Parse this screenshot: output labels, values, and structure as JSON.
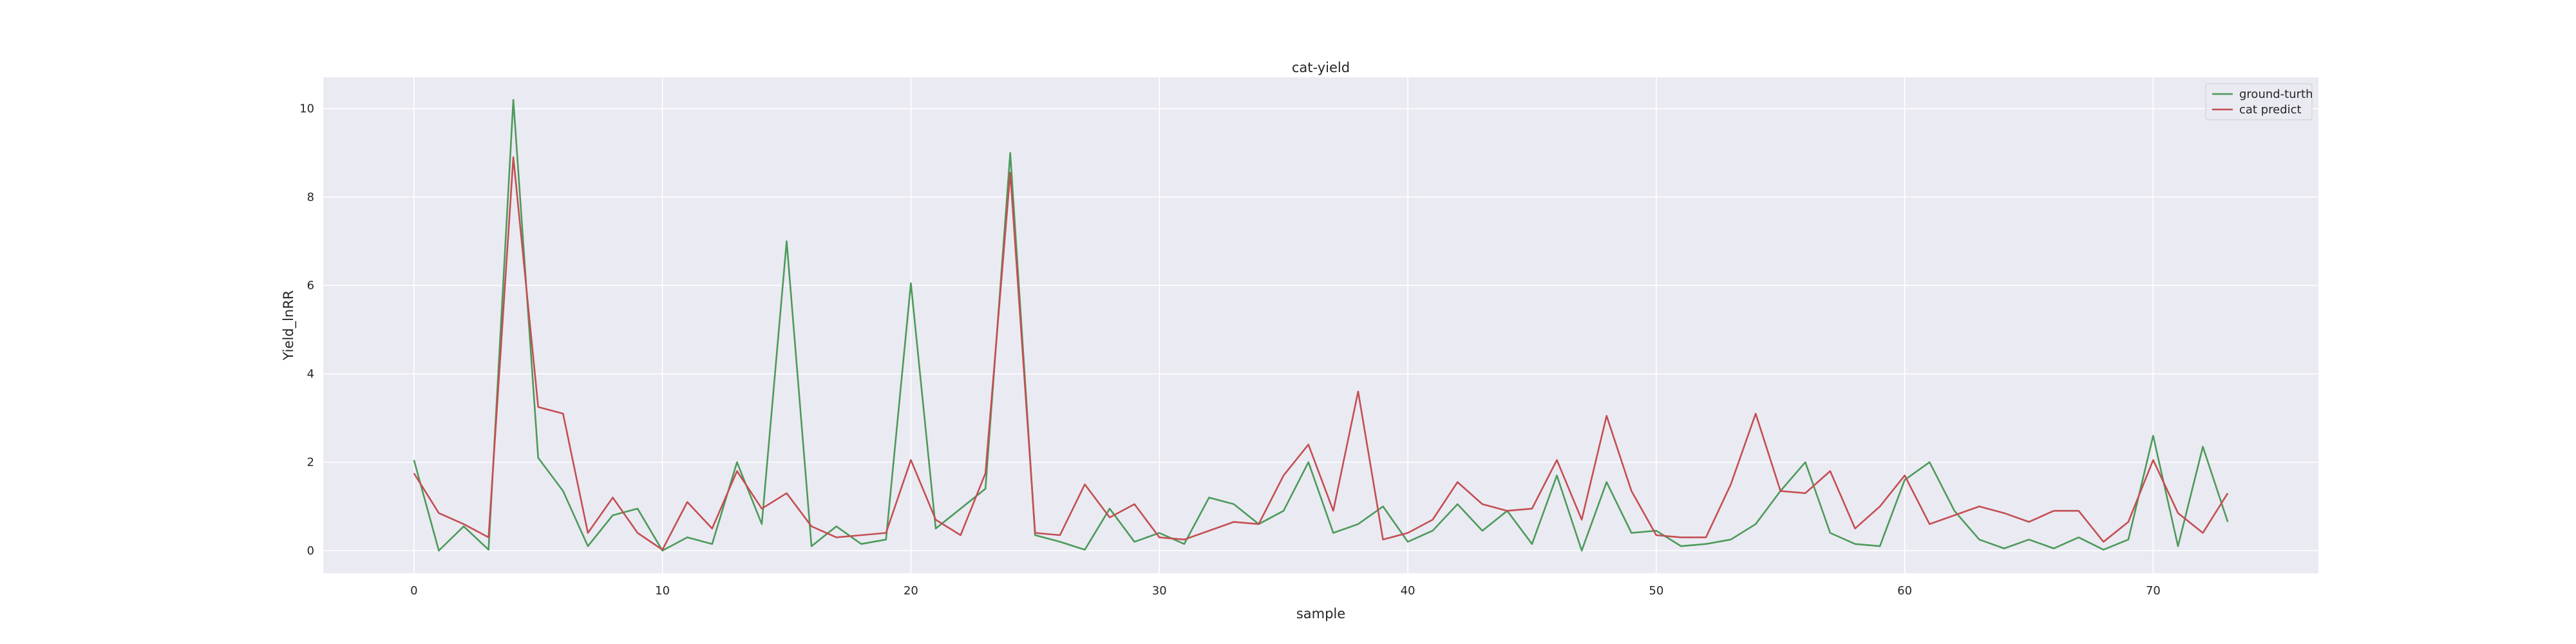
{
  "chart_data": {
    "type": "line",
    "title": "cat-yield",
    "xlabel": "sample",
    "ylabel": "Yield_lnRR",
    "xlim": [
      -3.65,
      76.65
    ],
    "ylim": [
      -0.51,
      10.71
    ],
    "xticks": [
      0,
      10,
      20,
      30,
      40,
      50,
      60,
      70
    ],
    "yticks": [
      0,
      2,
      4,
      6,
      8,
      10
    ],
    "grid": true,
    "background": "#eaeaf2",
    "legend_position": "upper right",
    "series": [
      {
        "name": "ground-turth",
        "color": "#4c9a5a",
        "values": [
          2.05,
          0.0,
          0.55,
          0.02,
          10.2,
          2.1,
          1.35,
          0.1,
          0.8,
          0.95,
          0.0,
          0.3,
          0.15,
          2.0,
          0.6,
          7.0,
          0.1,
          0.55,
          0.15,
          0.25,
          6.05,
          0.5,
          0.95,
          1.4,
          9.0,
          0.35,
          0.2,
          0.02,
          0.95,
          0.2,
          0.4,
          0.15,
          1.2,
          1.05,
          0.6,
          0.9,
          2.0,
          0.4,
          0.6,
          1.0,
          0.2,
          0.45,
          1.05,
          0.45,
          0.9,
          0.15,
          1.7,
          0.0,
          1.55,
          0.4,
          0.45,
          0.1,
          0.15,
          0.25,
          0.6,
          1.35,
          2.0,
          0.4,
          0.15,
          0.1,
          1.6,
          2.0,
          0.9,
          0.25,
          0.05,
          0.25,
          0.05,
          0.3,
          0.02,
          0.25,
          2.6,
          0.1,
          2.35,
          0.65
        ]
      },
      {
        "name": "cat predict",
        "color": "#c44e52",
        "values": [
          1.75,
          0.85,
          0.6,
          0.3,
          8.9,
          3.25,
          3.1,
          0.4,
          1.2,
          0.4,
          0.02,
          1.1,
          0.5,
          1.8,
          0.95,
          1.3,
          0.55,
          0.3,
          0.35,
          0.4,
          2.05,
          0.7,
          0.35,
          1.75,
          8.55,
          0.4,
          0.35,
          1.5,
          0.75,
          1.05,
          0.3,
          0.25,
          0.45,
          0.65,
          0.6,
          1.7,
          2.4,
          0.9,
          3.6,
          0.25,
          0.4,
          0.7,
          1.55,
          1.05,
          0.9,
          0.95,
          2.05,
          0.7,
          3.05,
          1.35,
          0.35,
          0.3,
          0.3,
          1.5,
          3.1,
          1.35,
          1.3,
          1.8,
          0.5,
          1.0,
          1.7,
          0.6,
          0.8,
          1.0,
          0.85,
          0.65,
          0.9,
          0.9,
          0.2,
          0.65,
          2.05,
          0.85,
          0.4,
          1.3
        ]
      }
    ]
  }
}
